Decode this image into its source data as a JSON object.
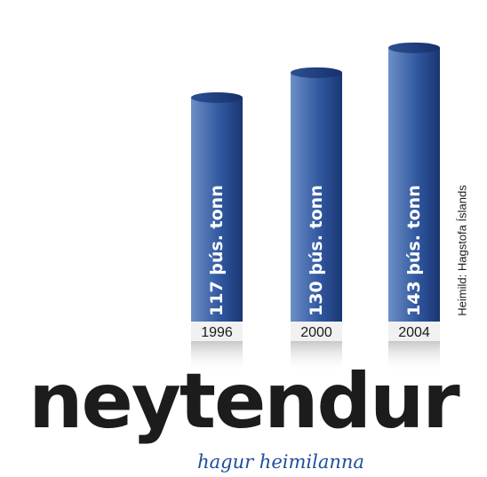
{
  "chart_data": {
    "type": "bar",
    "categories": [
      "1996",
      "2000",
      "2004"
    ],
    "values": [
      117,
      130,
      143
    ],
    "unit": "þús. tonn",
    "data_labels": [
      "117 þús. tonn",
      "130 þús. tonn",
      "143 þús. tonn"
    ],
    "title": "",
    "xlabel": "",
    "ylabel": "",
    "grid": false,
    "legend": "none",
    "style": "3d-cylinder",
    "colors": {
      "bar_light": "#6e8fc6",
      "bar_mid": "#3158a0",
      "bar_dark": "#1a3574",
      "label": "#ffffff"
    }
  },
  "source": "Heimild: Hagstofa Íslands",
  "brand": {
    "logo_text": "neytendur",
    "tagline": "hagur heimilanna",
    "tagline_color": "#1f4e9c"
  }
}
